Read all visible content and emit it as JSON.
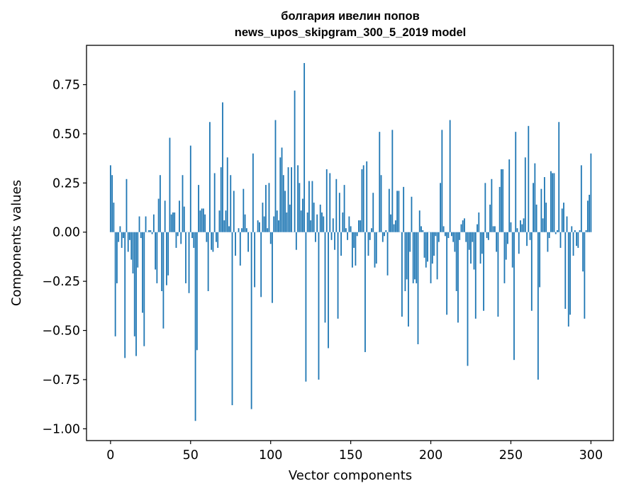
{
  "chart_data": {
    "type": "bar",
    "title": "болгария ивелин попов",
    "subtitle": "news_upos_skipgram_300_5_2019 model",
    "xlabel": "Vector components",
    "ylabel": "Components values",
    "xlim": [
      -15,
      314
    ],
    "ylim": [
      -1.06,
      0.95
    ],
    "x_ticks": [
      0,
      50,
      100,
      150,
      200,
      250,
      300
    ],
    "y_ticks": [
      -1.0,
      -0.75,
      -0.5,
      -0.25,
      0.0,
      0.25,
      0.5,
      0.75
    ],
    "y_tick_labels": [
      "−1.00",
      "−0.75",
      "−0.50",
      "−0.25",
      "0.00",
      "0.25",
      "0.50",
      "0.75"
    ],
    "bar_color": "#1f77b4",
    "grid": false,
    "legend": "none",
    "values": [
      0.34,
      0.29,
      0.15,
      -0.53,
      -0.26,
      -0.05,
      0.03,
      -0.08,
      -0.03,
      -0.64,
      0.27,
      -0.1,
      -0.04,
      -0.14,
      -0.21,
      -0.53,
      -0.63,
      -0.18,
      0.08,
      -0.03,
      -0.41,
      -0.58,
      0.08,
      0.0,
      0.01,
      0.01,
      -0.01,
      0.09,
      -0.19,
      -0.26,
      0.17,
      0.29,
      -0.3,
      -0.49,
      0.16,
      -0.27,
      -0.22,
      0.48,
      0.09,
      0.1,
      0.1,
      -0.08,
      -0.02,
      0.16,
      -0.06,
      0.29,
      0.13,
      -0.26,
      0.0,
      -0.31,
      0.44,
      -0.03,
      -0.08,
      -0.96,
      -0.6,
      0.24,
      0.11,
      0.12,
      0.12,
      0.09,
      -0.05,
      -0.3,
      0.56,
      -0.09,
      -0.1,
      0.3,
      -0.05,
      -0.08,
      0.11,
      0.33,
      0.66,
      0.06,
      0.11,
      0.38,
      0.03,
      0.29,
      -0.88,
      0.21,
      -0.12,
      0.0,
      0.02,
      -0.17,
      0.02,
      0.22,
      0.09,
      0.02,
      -0.1,
      0.0,
      -0.9,
      0.4,
      -0.28,
      0.0,
      0.06,
      0.05,
      -0.33,
      0.15,
      0.08,
      0.24,
      0.02,
      0.25,
      -0.06,
      -0.36,
      0.08,
      0.57,
      0.11,
      0.06,
      0.38,
      0.43,
      0.29,
      0.21,
      0.1,
      0.33,
      0.14,
      0.33,
      0.0,
      0.72,
      -0.09,
      0.34,
      0.25,
      0.11,
      0.17,
      0.86,
      -0.76,
      0.1,
      0.26,
      0.06,
      0.26,
      0.15,
      -0.05,
      0.09,
      -0.75,
      0.14,
      0.1,
      0.08,
      -0.46,
      0.32,
      -0.59,
      0.3,
      -0.04,
      0.07,
      -0.09,
      0.27,
      -0.44,
      0.2,
      -0.12,
      0.1,
      0.24,
      0.02,
      -0.04,
      0.08,
      0.03,
      -0.18,
      -0.08,
      -0.17,
      -0.02,
      0.06,
      0.06,
      0.32,
      0.34,
      -0.61,
      0.36,
      -0.12,
      -0.04,
      0.02,
      0.2,
      -0.18,
      -0.16,
      0.0,
      0.51,
      0.29,
      -0.05,
      -0.02,
      0.01,
      -0.22,
      0.22,
      0.09,
      0.52,
      0.04,
      0.06,
      0.21,
      0.21,
      0.0,
      -0.43,
      0.23,
      -0.3,
      -0.24,
      -0.48,
      -0.1,
      0.18,
      -0.26,
      -0.24,
      -0.26,
      -0.57,
      0.11,
      0.03,
      0.01,
      -0.13,
      -0.18,
      -0.15,
      0.0,
      -0.26,
      -0.16,
      -0.12,
      -0.02,
      -0.24,
      -0.05,
      0.25,
      0.52,
      0.03,
      -0.02,
      -0.42,
      -0.03,
      0.57,
      -0.02,
      -0.05,
      -0.1,
      -0.3,
      -0.46,
      -0.04,
      0.04,
      0.06,
      0.07,
      -0.05,
      -0.68,
      -0.09,
      -0.16,
      -0.05,
      -0.19,
      -0.44,
      0.04,
      0.1,
      -0.16,
      -0.11,
      -0.4,
      0.25,
      -0.03,
      -0.04,
      0.14,
      0.27,
      0.03,
      0.03,
      -0.1,
      -0.43,
      0.23,
      0.32,
      0.32,
      -0.26,
      -0.14,
      -0.06,
      0.37,
      0.05,
      -0.18,
      -0.65,
      0.51,
      0.02,
      -0.11,
      0.06,
      0.04,
      0.07,
      0.38,
      -0.07,
      0.54,
      -0.04,
      -0.4,
      0.25,
      0.35,
      0.14,
      -0.75,
      -0.28,
      0.22,
      0.07,
      0.28,
      0.15,
      -0.1,
      -0.03,
      0.31,
      0.3,
      0.3,
      -0.01,
      0.01,
      0.56,
      -0.08,
      0.12,
      0.15,
      -0.39,
      0.08,
      -0.48,
      -0.42,
      0.03,
      -0.12,
      0.01,
      -0.07,
      -0.08,
      0.01,
      0.34,
      -0.2,
      -0.44,
      0.01,
      0.16,
      0.19,
      0.4
    ]
  }
}
